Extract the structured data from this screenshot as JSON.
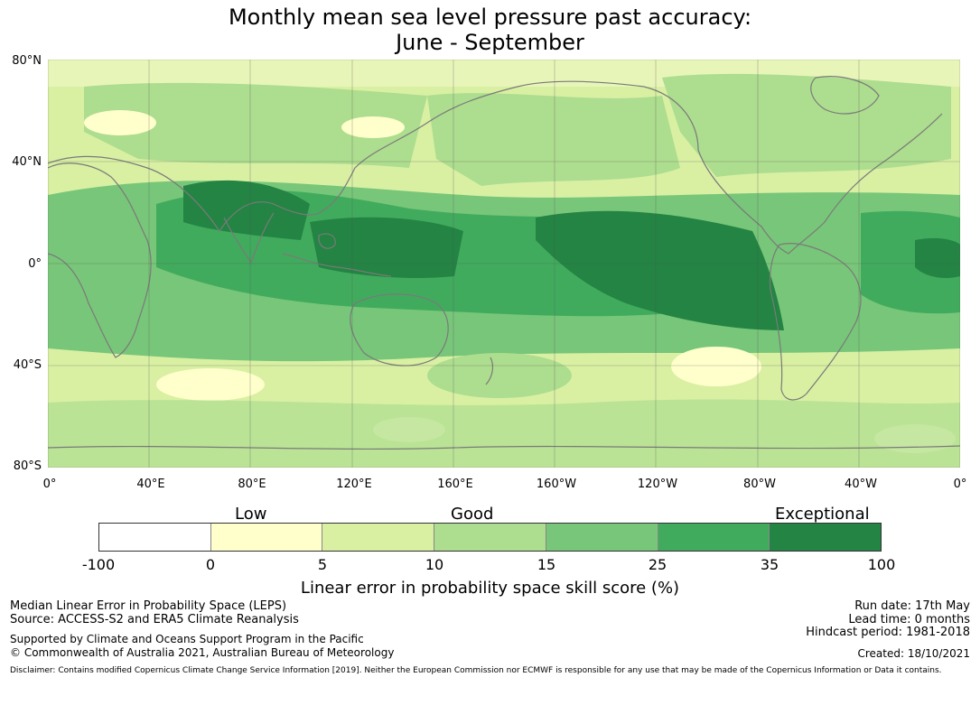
{
  "title": {
    "line1": "Monthly mean sea level pressure past accuracy:",
    "line2": "June - September"
  },
  "map": {
    "lat_labels": [
      "80°N",
      "40°N",
      "0°",
      "40°S",
      "80°S"
    ],
    "lon_labels": [
      "0°",
      "40°E",
      "80°E",
      "120°E",
      "160°E",
      "160°W",
      "120°W",
      "80°W",
      "40°W",
      "0°"
    ],
    "lat_range": [
      80,
      -80
    ],
    "lon_range": [
      0,
      360
    ],
    "gridlines": true,
    "coastline_color": "#7a7a7a",
    "region_levels": [
      {
        "region": "north-pacific",
        "level": 2
      },
      {
        "region": "north-america",
        "level": 2
      },
      {
        "region": "arctic",
        "level": 1
      },
      {
        "region": "north-atlantic",
        "level": 2
      },
      {
        "region": "europe-asia",
        "level": 2
      },
      {
        "region": "tropical-indian-ocean",
        "level": 4
      },
      {
        "region": "maritime-continent",
        "level": 5
      },
      {
        "region": "eastern-tropical-pacific",
        "level": 6
      },
      {
        "region": "south-america-west",
        "level": 6
      },
      {
        "region": "tropical-atlantic",
        "level": 5
      },
      {
        "region": "africa",
        "level": 3
      },
      {
        "region": "australia",
        "level": 3
      },
      {
        "region": "southern-ocean",
        "level": 2
      },
      {
        "region": "antarctica-edge",
        "level": 3
      }
    ]
  },
  "colorbar": {
    "words": {
      "low": "Low",
      "good": "Good",
      "exceptional": "Exceptional"
    },
    "ticks": [
      "-100",
      "0",
      "5",
      "10",
      "15",
      "25",
      "35",
      "100"
    ],
    "colors": [
      "#ffffff",
      "#ffffcc",
      "#d9f0a3",
      "#addd8e",
      "#78c679",
      "#41ab5d",
      "#238443"
    ],
    "label": "Linear error in probability space skill score (%)"
  },
  "footer": {
    "left": {
      "line1": "Median Linear Error in Probability Space (LEPS)",
      "line2": "Source: ACCESS-S2 and ERA5 Climate Reanalysis",
      "line3": "Supported by Climate and Oceans Support Program in the Pacific",
      "line4": "© Commonwealth of Australia 2021, Australian Bureau of Meteorology"
    },
    "right": {
      "run_date": "Run date: 17th May",
      "lead_time": "Lead time: 0 months",
      "hindcast": "Hindcast period: 1981-2018",
      "created": "Created: 18/10/2021"
    },
    "disclaimer": "Disclaimer: Contains modified Copernicus Climate Change Service Information [2019]. Neither the European Commission nor ECMWF is responsible for any use that may be made of the Copernicus Information or Data it contains."
  }
}
